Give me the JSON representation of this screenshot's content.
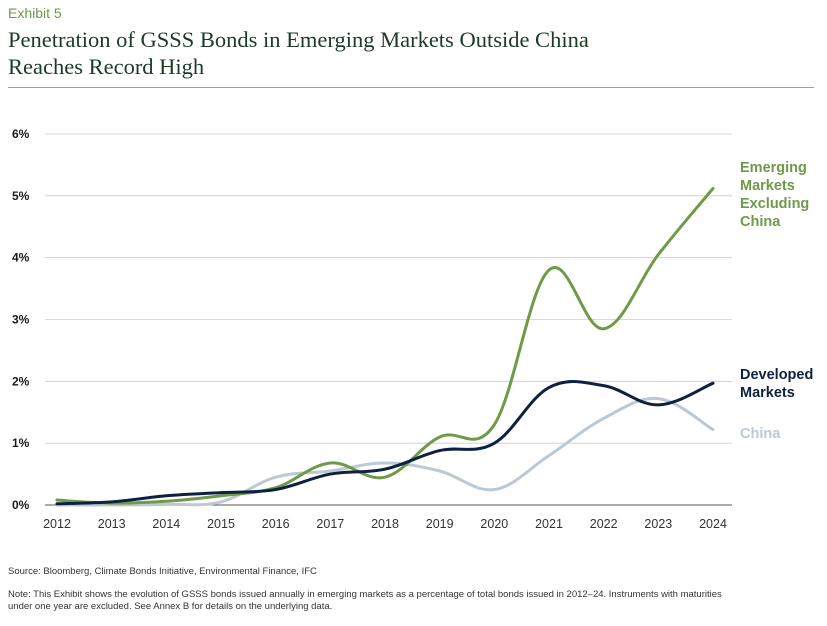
{
  "header": {
    "exhibit": "Exhibit 5",
    "title_line1": "Penetration of GSSS Bonds in Emerging Markets Outside China",
    "title_line2": "Reaches Record High"
  },
  "footer": {
    "source": "Source: Bloomberg, Climate Bonds Initiative, Environmental Finance, IFC",
    "note_line1": "Note: This Exhibit shows the evolution of GSSS bonds issued annually in emerging markets as a percentage of total bonds issued in 2012–24. Instruments with maturities",
    "note_line2": "under one year are excluded. See Annex B for details on the underlying data."
  },
  "chart_data": {
    "type": "line",
    "title": "Penetration of GSSS Bonds in Emerging Markets Outside China Reaches Record High",
    "x": [
      "2012",
      "2013",
      "2014",
      "2015",
      "2016",
      "2017",
      "2018",
      "2019",
      "2020",
      "2021",
      "2022",
      "2023",
      "2024"
    ],
    "y_ticks": [
      "0%",
      "1%",
      "2%",
      "3%",
      "4%",
      "5%",
      "6%"
    ],
    "ylim": [
      0,
      6
    ],
    "grid": true,
    "legend": "right, inline labels at line ends",
    "series": [
      {
        "name": "Emerging Markets Excluding China",
        "label_lines": [
          "Emerging",
          "Markets",
          "Excluding",
          "China"
        ],
        "color": "#6f9a4a",
        "values": [
          0.08,
          0.03,
          0.06,
          0.15,
          0.28,
          0.68,
          0.45,
          1.1,
          1.3,
          3.8,
          2.85,
          4.05,
          5.12
        ]
      },
      {
        "name": "Developed Markets",
        "label_lines": [
          "Developed",
          "Markets"
        ],
        "color": "#0d2240",
        "values": [
          0.02,
          0.05,
          0.15,
          0.2,
          0.25,
          0.5,
          0.58,
          0.88,
          1.0,
          1.9,
          1.93,
          1.62,
          1.97
        ]
      },
      {
        "name": "China",
        "label_lines": [
          "China"
        ],
        "color": "#bcc8d3",
        "values": [
          0.0,
          0.0,
          0.01,
          0.05,
          0.45,
          0.55,
          0.68,
          0.55,
          0.25,
          0.8,
          1.4,
          1.72,
          1.22
        ]
      }
    ]
  }
}
